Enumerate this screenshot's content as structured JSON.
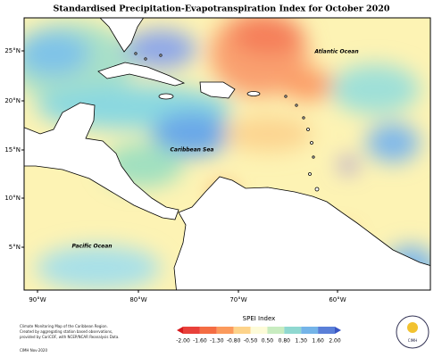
{
  "title": "Standardised Precipitation-Evapotranspiration Index for October 2020",
  "map": {
    "lat_labels": [
      "25°N",
      "20°N",
      "15°N",
      "10°N",
      "5°N"
    ],
    "lon_labels": [
      "90°W",
      "80°W",
      "70°W",
      "60°W"
    ],
    "region_labels": [
      "Atlantic Ocean",
      "Caribbean Sea",
      "Pacific Ocean"
    ]
  },
  "legend": {
    "title": "SPEI Index",
    "ticks": [
      "-2.00",
      "-1.60",
      "-1.30",
      "-0.80",
      "-0.50",
      "0.50",
      "0.80",
      "1.30",
      "1.60",
      "2.00"
    ]
  },
  "credits": [
    "Climate Monitoring Map of the Caribbean Region.",
    "Created by aggregating station based observations,",
    "provided by CariCOF, with NCEP/NCAR Reanalysis Data."
  ],
  "footer": "CIMH Nov-2020",
  "logo": "CIMH"
}
